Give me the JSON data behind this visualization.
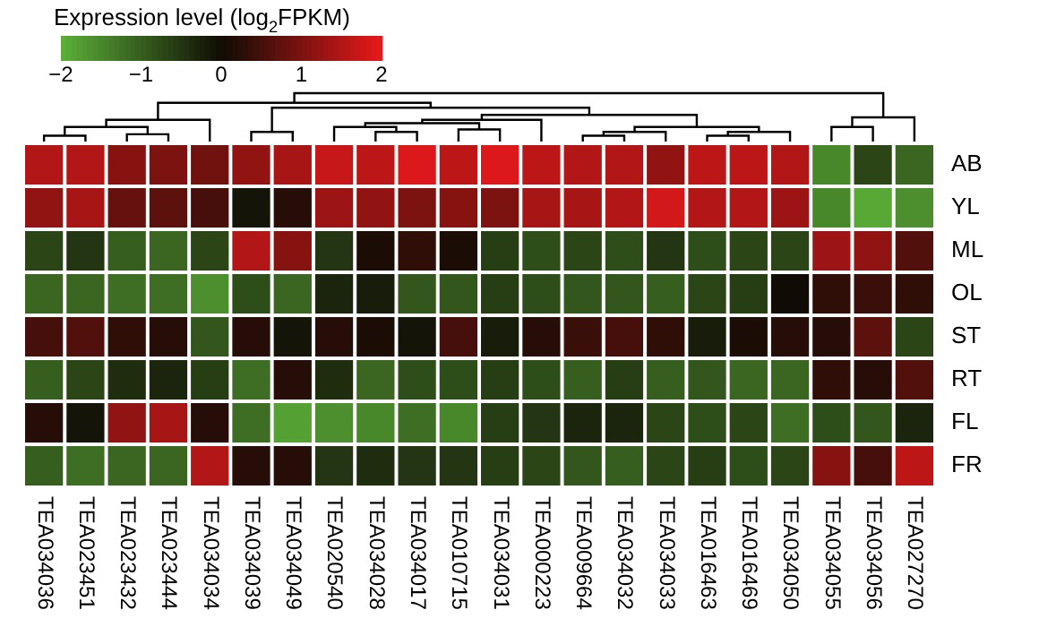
{
  "chart_data": {
    "type": "heatmap",
    "clabel": "Expression level (log$_{2}$FPKM)",
    "clim": [
      -2,
      2
    ],
    "cticks": [
      -2,
      -1,
      0,
      1,
      2
    ],
    "categories": [
      "TEA034036",
      "TEA023451",
      "TEA023432",
      "TEA023444",
      "TEA034034",
      "TEA034039",
      "TEA034049",
      "TEA020540",
      "TEA034028",
      "TEA034017",
      "TEA010715",
      "TEA034031",
      "TEA000223",
      "TEA009664",
      "TEA034032",
      "TEA034033",
      "TEA016463",
      "TEA016469",
      "TEA034050",
      "TEA034055",
      "TEA034056",
      "TEA027270"
    ],
    "y_categories": [
      "AB",
      "YL",
      "ML",
      "OL",
      "ST",
      "RT",
      "FL",
      "FR"
    ],
    "cells": [
      [
        1.5,
        1.5,
        1.1,
        1.0,
        0.9,
        1.2,
        1.4,
        1.7,
        1.6,
        1.9,
        1.6,
        1.9,
        1.6,
        1.5,
        1.5,
        1.2,
        1.6,
        1.6,
        1.5,
        -1.5,
        -0.7,
        -1.1
      ],
      [
        1.2,
        1.4,
        0.8,
        0.7,
        0.5,
        -0.1,
        0.2,
        1.3,
        1.2,
        1.0,
        1.1,
        1.0,
        1.4,
        1.4,
        1.5,
        1.8,
        1.5,
        1.5,
        1.3,
        -1.5,
        -1.9,
        -1.6
      ],
      [
        -0.7,
        -0.5,
        -1.0,
        -1.1,
        -0.7,
        1.5,
        1.1,
        -0.5,
        0.1,
        0.3,
        0.1,
        -0.6,
        -0.8,
        -0.7,
        -0.8,
        -0.5,
        -0.8,
        -0.7,
        -0.7,
        1.3,
        1.2,
        0.6
      ],
      [
        -1.1,
        -1.1,
        -1.2,
        -1.2,
        -1.6,
        -0.8,
        -1.1,
        -0.3,
        -0.2,
        -0.9,
        -0.9,
        -0.6,
        -0.8,
        -0.9,
        -0.9,
        -1.0,
        -0.7,
        -0.6,
        0.0,
        0.3,
        0.4,
        0.3
      ],
      [
        0.5,
        0.6,
        0.3,
        0.2,
        -0.9,
        0.2,
        -0.1,
        0.2,
        0.1,
        -0.1,
        0.5,
        -0.2,
        0.2,
        0.4,
        0.5,
        0.3,
        -0.2,
        0.1,
        0.2,
        0.2,
        0.7,
        -0.7
      ],
      [
        -1.0,
        -0.7,
        -0.4,
        -0.3,
        -0.6,
        -1.2,
        0.2,
        -0.4,
        -1.1,
        -0.8,
        -0.8,
        -0.6,
        -0.8,
        -1.0,
        -0.6,
        -1.0,
        -0.9,
        -1.1,
        -1.1,
        0.3,
        0.2,
        0.6
      ],
      [
        0.2,
        -0.1,
        1.2,
        1.4,
        0.2,
        -1.2,
        -1.8,
        -1.6,
        -1.5,
        -1.2,
        -1.5,
        -0.6,
        -0.5,
        -0.3,
        -0.3,
        -0.7,
        -0.8,
        -0.7,
        -1.2,
        -0.8,
        -0.9,
        -0.3
      ],
      [
        -1.0,
        -1.2,
        -1.1,
        -1.1,
        1.5,
        0.2,
        0.2,
        -0.5,
        -0.4,
        -0.5,
        -0.5,
        -0.6,
        -0.7,
        -0.9,
        -1.0,
        -0.7,
        -0.6,
        -0.8,
        -0.7,
        1.1,
        0.5,
        1.6
      ]
    ]
  }
}
